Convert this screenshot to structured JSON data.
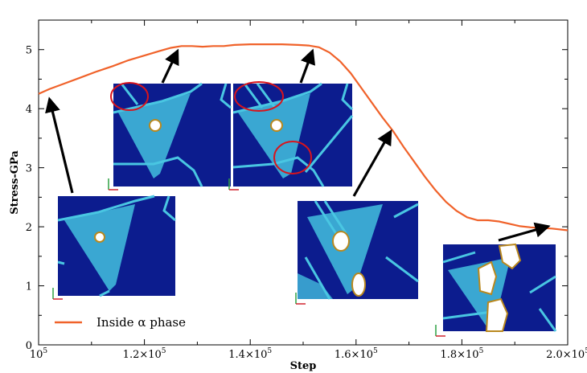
{
  "chart_data": {
    "type": "line",
    "xlabel": "Step",
    "ylabel": "Stress-GPa",
    "xlim": [
      100000,
      200000
    ],
    "ylim": [
      0,
      5.5
    ],
    "x_ticks": [
      {
        "value": 100000,
        "mant": "10",
        "exp": "5"
      },
      {
        "value": 120000,
        "mant": "1.2×10",
        "exp": "5"
      },
      {
        "value": 140000,
        "mant": "1.4×10",
        "exp": "5"
      },
      {
        "value": 160000,
        "mant": "1.6×10",
        "exp": "5"
      },
      {
        "value": 180000,
        "mant": "1.8×10",
        "exp": "5"
      },
      {
        "value": 200000,
        "mant": "2.0×10",
        "exp": "5"
      }
    ],
    "y_ticks": [
      "0",
      "1",
      "2",
      "3",
      "4",
      "5"
    ],
    "grid": false,
    "legend_position": "bottom-left",
    "series": [
      {
        "name": "Inside α phase",
        "color": "#f0622a",
        "points": [
          [
            100000,
            4.25
          ],
          [
            102000,
            4.33
          ],
          [
            105000,
            4.43
          ],
          [
            108000,
            4.53
          ],
          [
            111000,
            4.63
          ],
          [
            114000,
            4.72
          ],
          [
            117000,
            4.82
          ],
          [
            120000,
            4.9
          ],
          [
            123000,
            4.98
          ],
          [
            125000,
            5.03
          ],
          [
            127000,
            5.06
          ],
          [
            129000,
            5.06
          ],
          [
            131000,
            5.05
          ],
          [
            133000,
            5.06
          ],
          [
            135000,
            5.06
          ],
          [
            137000,
            5.08
          ],
          [
            140000,
            5.09
          ],
          [
            143000,
            5.09
          ],
          [
            146000,
            5.09
          ],
          [
            149000,
            5.08
          ],
          [
            151000,
            5.07
          ],
          [
            153000,
            5.04
          ],
          [
            155000,
            4.95
          ],
          [
            157000,
            4.8
          ],
          [
            159000,
            4.6
          ],
          [
            161000,
            4.35
          ],
          [
            163000,
            4.1
          ],
          [
            165000,
            3.85
          ],
          [
            167000,
            3.62
          ],
          [
            169000,
            3.35
          ],
          [
            171000,
            3.1
          ],
          [
            173000,
            2.85
          ],
          [
            175000,
            2.62
          ],
          [
            177000,
            2.42
          ],
          [
            179000,
            2.27
          ],
          [
            181000,
            2.16
          ],
          [
            183000,
            2.11
          ],
          [
            185000,
            2.11
          ],
          [
            187000,
            2.09
          ],
          [
            189000,
            2.05
          ],
          [
            191000,
            2.01
          ],
          [
            193000,
            1.99
          ],
          [
            195000,
            1.98
          ],
          [
            197000,
            1.97
          ],
          [
            200000,
            1.94
          ]
        ]
      }
    ]
  },
  "insets": [
    {
      "name": "inset-1",
      "circles": 0
    },
    {
      "name": "inset-2",
      "circles": 1
    },
    {
      "name": "inset-3",
      "circles": 2
    },
    {
      "name": "inset-4",
      "circles": 0
    },
    {
      "name": "inset-5",
      "circles": 0
    }
  ],
  "colors": {
    "matrix": "#0c1c8e",
    "phase": "#3fb3d8",
    "boundary": "#49c6e2",
    "annotation_circle": "#d8141c",
    "arrow": "#000000"
  }
}
